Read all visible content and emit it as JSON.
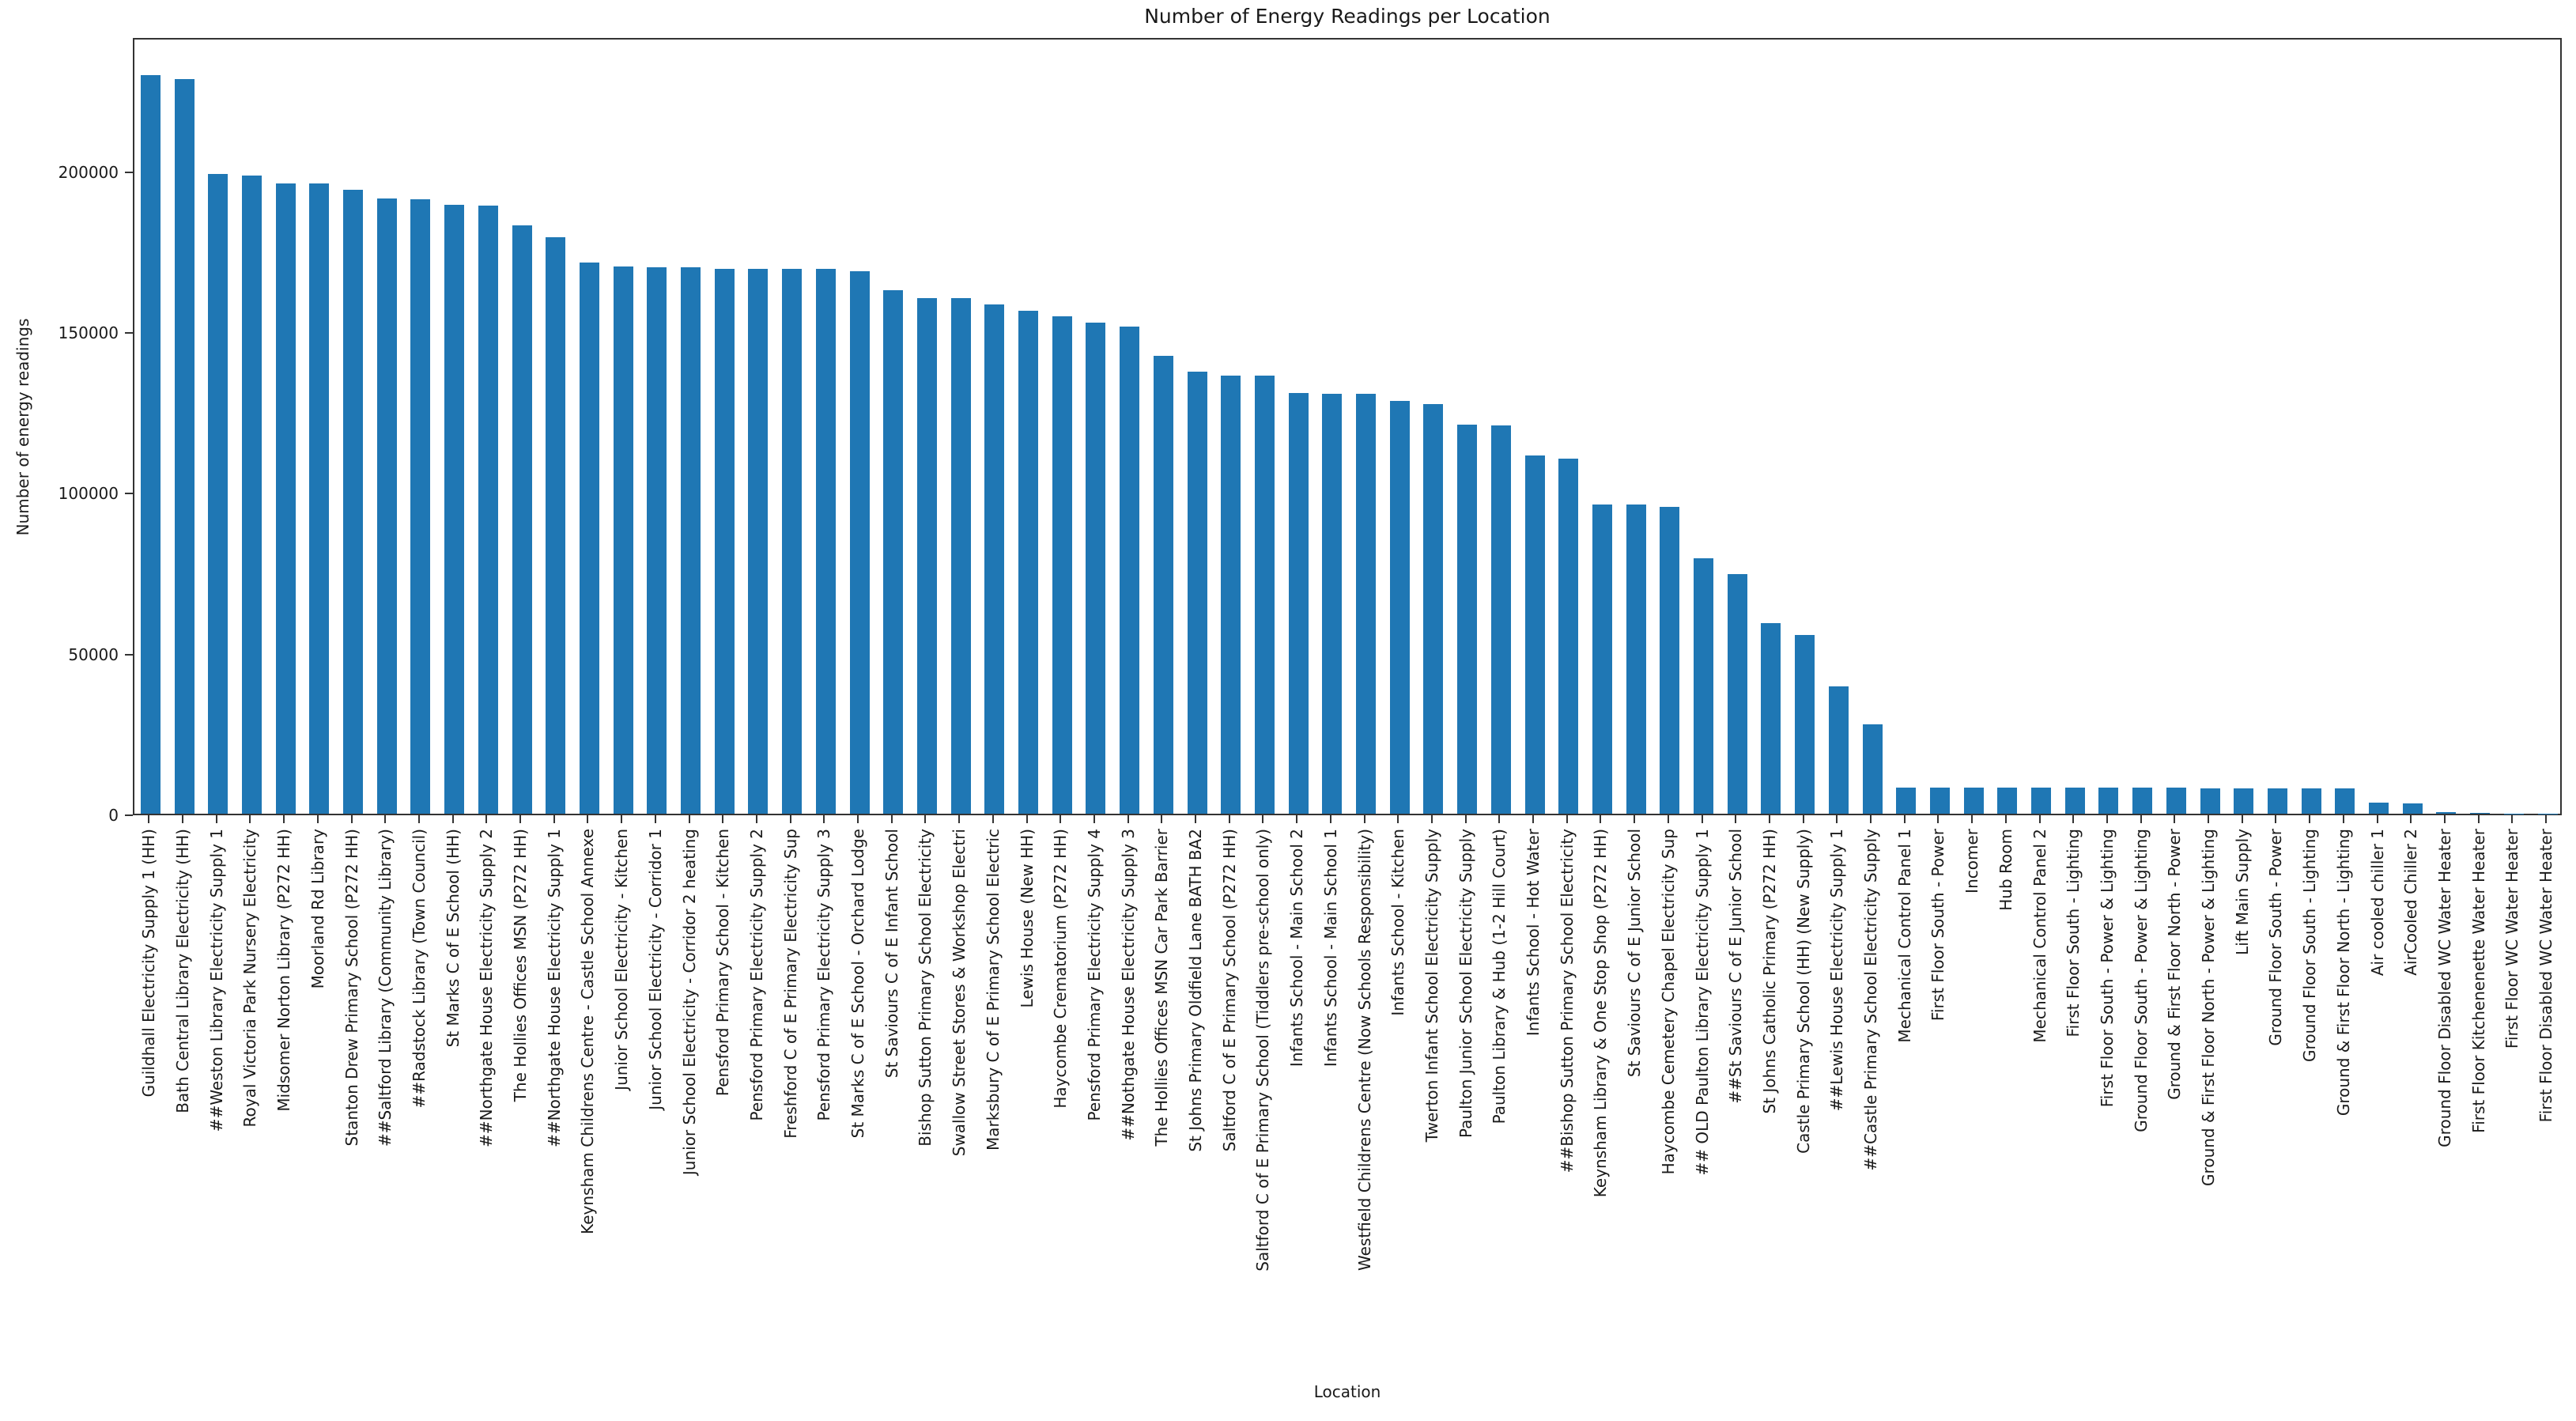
{
  "chart_data": {
    "type": "bar",
    "title": "Number of Energy Readings per Location",
    "xlabel": "Location",
    "ylabel": "Number of energy readings",
    "bar_color": "#1f77b4",
    "grid": false,
    "legend": null,
    "ylim": [
      0,
      241800
    ],
    "yticks": [
      0,
      50000,
      100000,
      150000,
      200000
    ],
    "categories": [
      "Guildhall Electricity Supply 1 (HH)",
      "Bath Central Library Electricity (HH)",
      "##Weston Library Electricity Supply 1",
      "Royal Victoria Park Nursery Electricity",
      "Midsomer Norton Library (P272 HH)",
      "Moorland Rd Library",
      "Stanton Drew Primary School (P272 HH)",
      "##Saltford Library (Community Library)",
      "##Radstock Library (Town Council)",
      "St Marks C of E School (HH)",
      "##Northgate House Electricity Supply 2",
      "The Hollies Offices MSN (P272 HH)",
      "##Northgate House Electricity Supply 1",
      "Keynsham Childrens Centre - Castle School Annexe",
      "Junior School Electricity - Kitchen",
      "Junior School Electricity - Corridor 1",
      "Junior School Electricity - Corridor 2 heating",
      "Pensford Primary School - Kitchen",
      "Pensford Primary Electricity Supply 2",
      "Freshford C of E Primary Electricity Sup",
      "Pensford Primary Electricity Supply 3",
      "St Marks C of E School - Orchard Lodge",
      "St Saviours C of E Infant School",
      "Bishop Sutton Primary School Electricity",
      "Swallow Street Stores & Workshop Electri",
      "Marksbury C of E Primary School Electric",
      "Lewis House (New HH)",
      "Haycombe Crematorium (P272 HH)",
      "Pensford Primary Electricity Supply 4",
      "##Nothgate House Electricity Supply 3",
      "The Hollies Offices MSN Car Park Barrier",
      "St Johns Primary Oldfield Lane BATH BA2",
      "Saltford C of E Primary School (P272 HH)",
      "Saltford C of E Primary School (Tiddlers pre-school only)",
      "Infants School - Main School 2",
      "Infants School - Main School 1",
      "Westfield Childrens Centre (Now Schools Responsibility)",
      "Infants School - Kitchen",
      "Twerton Infant School Electricity Supply",
      "Paulton Junior School Electricity Supply",
      "Paulton Library & Hub (1-2 Hill Court)",
      "Infants School - Hot Water",
      "##Bishop Sutton Primary School Electricity",
      "Keynsham Library & One Stop Shop (P272 HH)",
      "St Saviours C of E Junior School",
      "Haycombe Cemetery Chapel Electricity Sup",
      "## OLD Paulton Library Electricity Supply 1",
      "##St Saviours C of E Junior School",
      "St Johns Catholic Primary (P272 HH)",
      "Castle Primary School (HH) (New Supply)",
      "##Lewis House Electricity Supply 1",
      "##Castle Primary School Electricity Supply",
      "Mechanical Control Panel 1",
      "First Floor South - Power",
      "Incomer",
      "Hub Room",
      "Mechanical Control Panel 2",
      "First Floor South - Lighting",
      "First Floor South - Power & Lighting",
      "Ground Floor South - Power & Lighting",
      "Ground & First Floor North - Power",
      "Ground & First Floor North - Power & Lighting",
      "Lift Main Supply",
      "Ground Floor South - Power",
      "Ground Floor South - Lighting",
      "Ground & First Floor North - Lighting",
      "Air cooled chiller 1",
      "AirCooled Chiller 2",
      "Ground Floor Disabled WC Water Heater",
      "First Floor Kitchenenette Water Heater",
      "First Floor WC Water Heater",
      "First Floor Disabled WC Water Heater"
    ],
    "values": [
      229800,
      228600,
      199100,
      198500,
      196100,
      196000,
      194000,
      191300,
      191100,
      189300,
      189200,
      183100,
      179400,
      171500,
      170200,
      170100,
      170000,
      169600,
      169500,
      169500,
      169400,
      168800,
      162900,
      160400,
      160300,
      158400,
      156500,
      154700,
      152800,
      151500,
      142400,
      137500,
      136300,
      136200,
      130800,
      130700,
      130600,
      128300,
      127500,
      121000,
      120900,
      111500,
      110400,
      96200,
      96200,
      95500,
      79400,
      74500,
      59300,
      55600,
      39600,
      27700,
      8200,
      8150,
      8100,
      8100,
      8050,
      8050,
      8000,
      8000,
      8000,
      7950,
      7950,
      7900,
      7900,
      7850,
      3500,
      3100,
      550,
      150,
      100,
      80
    ]
  }
}
